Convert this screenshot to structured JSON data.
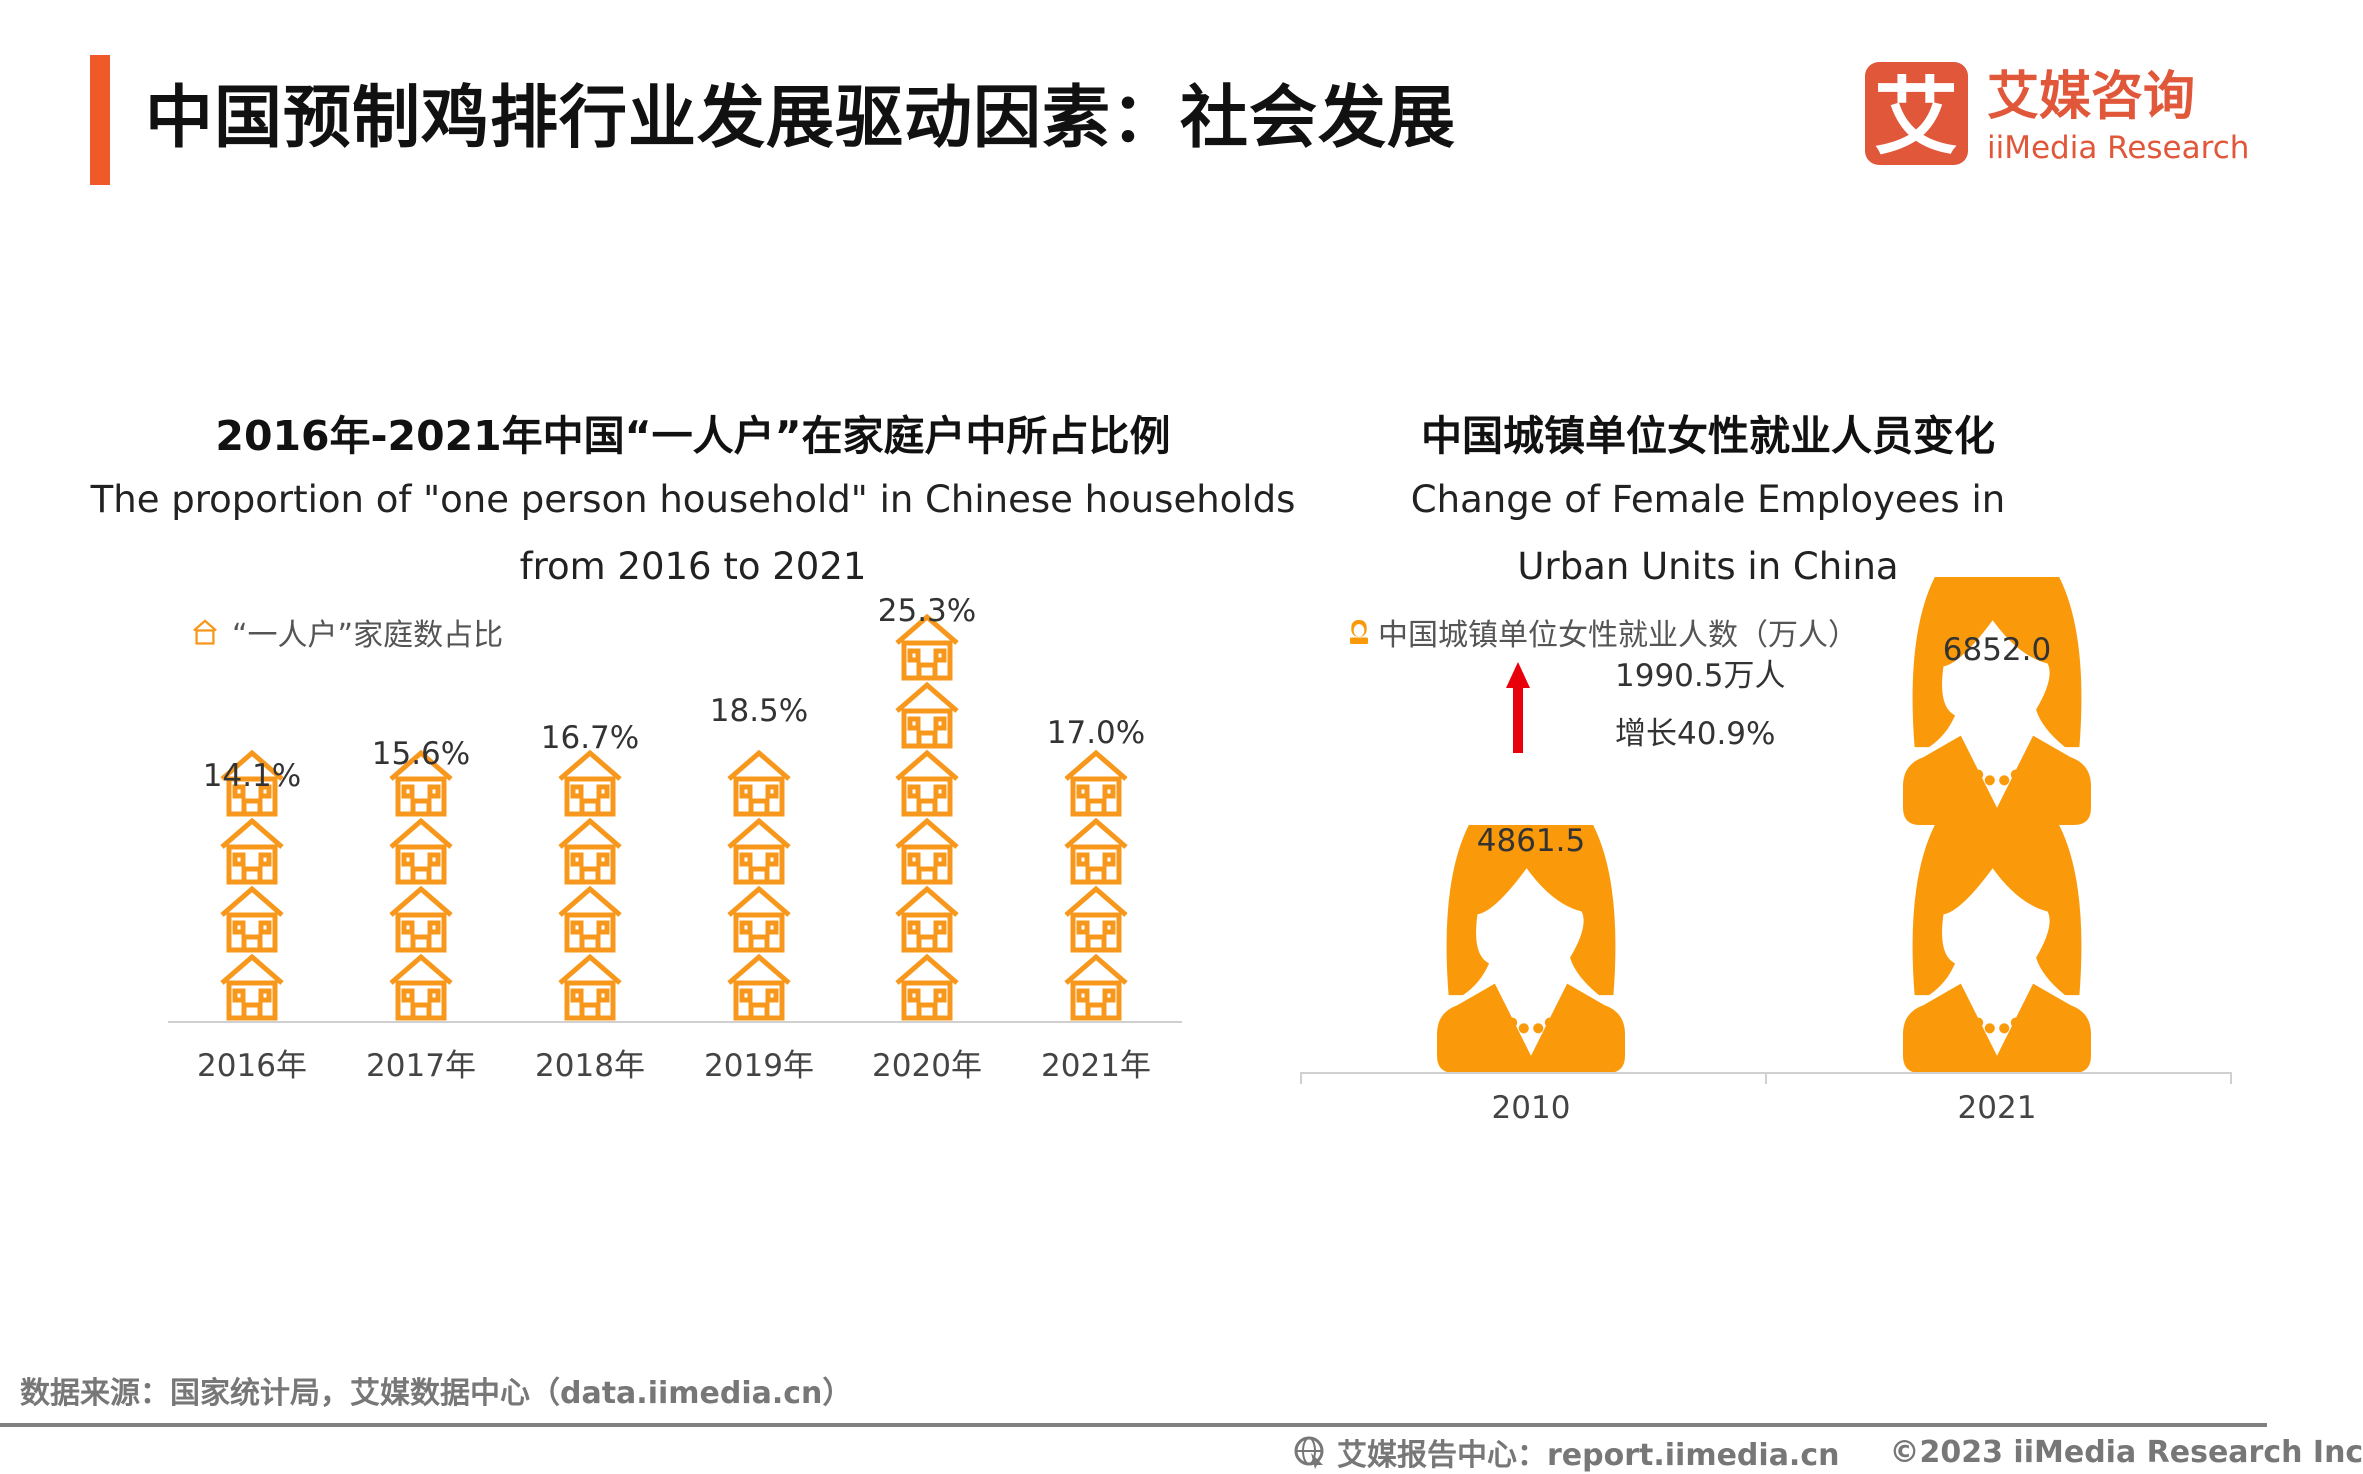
{
  "header": {
    "title": "中国预制鸡排行业发展驱动因素：社会发展",
    "logo_cn": "艾媒咨询",
    "logo_en": "iiMedia Research",
    "logo_mark": "艾",
    "brand_color": "#E0573A"
  },
  "chart_data": [
    {
      "type": "bar",
      "mark": "house-icon-pictograph",
      "title": "2016年-2021年中国“一人户”在家庭户中所占比例",
      "subtitle_lines": [
        "The proportion of \"one person household\" in Chinese households",
        "from 2016 to 2021"
      ],
      "legend": "“一人户”家庭数占比",
      "legend_placement": "top-left",
      "categories": [
        "2016年",
        "2017年",
        "2018年",
        "2019年",
        "2020年",
        "2021年"
      ],
      "values": [
        14.1,
        15.6,
        16.7,
        18.5,
        25.3,
        17.0
      ],
      "value_labels": [
        "14.1%",
        "15.6%",
        "16.7%",
        "18.5%",
        "25.3%",
        "17.0%"
      ],
      "unit": "%",
      "color": "#F7981D",
      "grid": false
    },
    {
      "type": "bar",
      "mark": "woman-icon-pictograph",
      "title": "中国城镇单位女性就业人员变化",
      "subtitle_lines": [
        "Change of Female Employees in",
        "Urban Units in China"
      ],
      "legend": "中国城镇单位女性就业人数（万人）",
      "legend_placement": "top-left",
      "categories": [
        "2010",
        "2021"
      ],
      "values": [
        4861.5,
        6852.0
      ],
      "value_labels": [
        "4861.5",
        "6852.0"
      ],
      "annotation": {
        "increase": "1990.5万人",
        "growth": "增长40.9%",
        "arrow_color": "#E8000B"
      },
      "color": "#FA9A0A",
      "grid": false
    }
  ],
  "footer": {
    "source": "数据来源：国家统计局，艾媒数据中心（data.iimedia.cn）",
    "report_center": "艾媒报告中心：report.iimedia.cn",
    "copyright": "©2023  iiMedia Research  Inc"
  }
}
